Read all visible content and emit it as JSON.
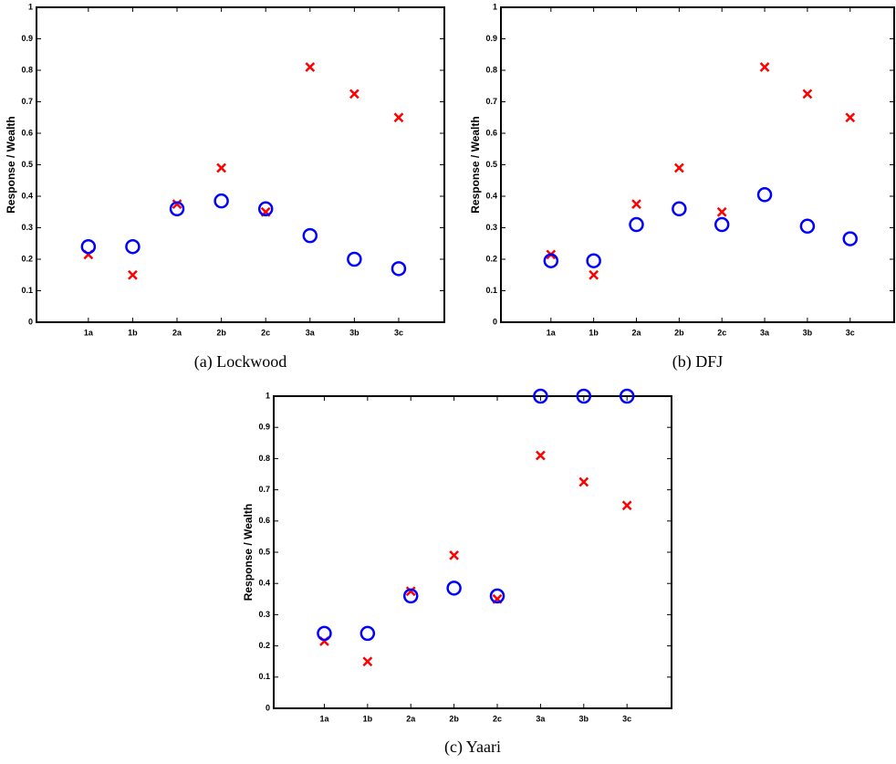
{
  "chart_data": [
    {
      "type": "scatter",
      "caption": "(a) Lockwood",
      "ylabel": "Response / Wealth",
      "categories": [
        "1a",
        "1b",
        "2a",
        "2b",
        "2c",
        "3a",
        "3b",
        "3c"
      ],
      "series": [
        {
          "marker": "x",
          "color": "#ff0000",
          "values": [
            0.215,
            0.15,
            0.375,
            0.49,
            0.35,
            0.81,
            0.725,
            0.65
          ]
        },
        {
          "marker": "circle",
          "color": "#0000ff",
          "values": [
            0.24,
            0.24,
            0.36,
            0.385,
            0.36,
            0.275,
            0.2,
            0.17
          ]
        }
      ],
      "ylim": [
        0,
        1
      ],
      "yticks": [
        0,
        0.1,
        0.2,
        0.3,
        0.4,
        0.5,
        0.6,
        0.7,
        0.8,
        0.9,
        1
      ]
    },
    {
      "type": "scatter",
      "caption": "(b) DFJ",
      "ylabel": "Response / Wealth",
      "categories": [
        "1a",
        "1b",
        "2a",
        "2b",
        "2c",
        "3a",
        "3b",
        "3c"
      ],
      "series": [
        {
          "marker": "x",
          "color": "#ff0000",
          "values": [
            0.215,
            0.15,
            0.375,
            0.49,
            0.35,
            0.81,
            0.725,
            0.65
          ]
        },
        {
          "marker": "circle",
          "color": "#0000ff",
          "values": [
            0.195,
            0.195,
            0.31,
            0.36,
            0.31,
            0.405,
            0.305,
            0.265
          ]
        }
      ],
      "ylim": [
        0,
        1
      ],
      "yticks": [
        0,
        0.1,
        0.2,
        0.3,
        0.4,
        0.5,
        0.6,
        0.7,
        0.8,
        0.9,
        1
      ]
    },
    {
      "type": "scatter",
      "caption": "(c) Yaari",
      "ylabel": "Response / Wealth",
      "categories": [
        "1a",
        "1b",
        "2a",
        "2b",
        "2c",
        "3a",
        "3b",
        "3c"
      ],
      "series": [
        {
          "marker": "x",
          "color": "#ff0000",
          "values": [
            0.215,
            0.15,
            0.375,
            0.49,
            0.35,
            0.81,
            0.725,
            0.65
          ]
        },
        {
          "marker": "circle",
          "color": "#0000ff",
          "values": [
            0.24,
            0.24,
            0.36,
            0.385,
            0.36,
            1,
            1,
            1
          ]
        }
      ],
      "ylim": [
        0,
        1
      ],
      "yticks": [
        0,
        0.1,
        0.2,
        0.3,
        0.4,
        0.5,
        0.6,
        0.7,
        0.8,
        0.9,
        1
      ]
    }
  ]
}
